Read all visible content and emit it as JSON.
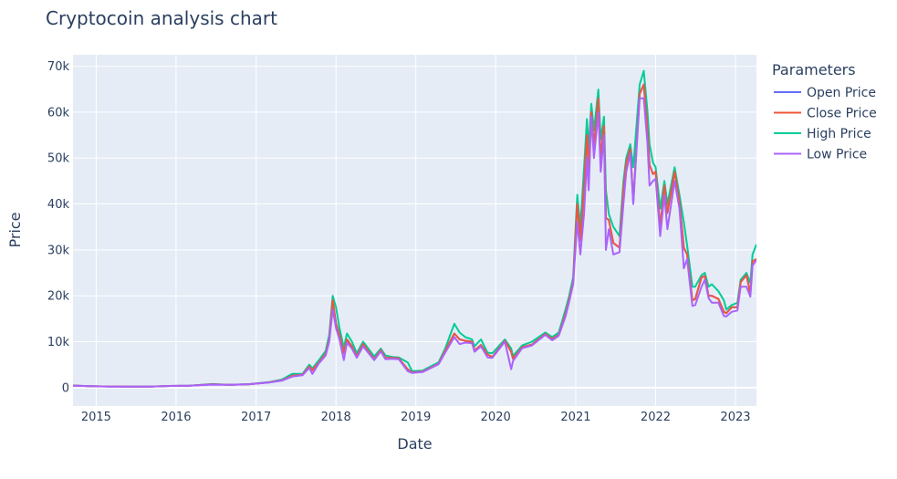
{
  "chart_data": {
    "type": "line",
    "title": "Cryptocoin analysis chart",
    "xlabel": "Date",
    "ylabel": "Price",
    "legend_title": "Parameters",
    "legend_position": "right",
    "grid": true,
    "x_range": [
      "2014-09-17",
      "2023-04-07"
    ],
    "ylim": [
      -4000,
      72500
    ],
    "x_ticks": [
      {
        "label": "2015",
        "date": "2015-01-01"
      },
      {
        "label": "2016",
        "date": "2016-01-01"
      },
      {
        "label": "2017",
        "date": "2017-01-01"
      },
      {
        "label": "2018",
        "date": "2018-01-01"
      },
      {
        "label": "2019",
        "date": "2019-01-01"
      },
      {
        "label": "2020",
        "date": "2020-01-01"
      },
      {
        "label": "2021",
        "date": "2021-01-01"
      },
      {
        "label": "2022",
        "date": "2022-01-01"
      },
      {
        "label": "2023",
        "date": "2023-01-01"
      }
    ],
    "y_ticks": [
      {
        "label": "0",
        "value": 0
      },
      {
        "label": "10k",
        "value": 10000
      },
      {
        "label": "20k",
        "value": 20000
      },
      {
        "label": "30k",
        "value": 30000
      },
      {
        "label": "40k",
        "value": 40000
      },
      {
        "label": "50k",
        "value": 50000
      },
      {
        "label": "60k",
        "value": 60000
      },
      {
        "label": "70k",
        "value": 70000
      }
    ],
    "x": [
      "2014-09-17",
      "2014-12-01",
      "2015-03-01",
      "2015-06-01",
      "2015-09-01",
      "2015-12-01",
      "2016-03-01",
      "2016-06-15",
      "2016-09-01",
      "2016-12-01",
      "2017-03-01",
      "2017-05-01",
      "2017-06-15",
      "2017-08-01",
      "2017-09-01",
      "2017-09-15",
      "2017-10-15",
      "2017-11-15",
      "2017-12-01",
      "2017-12-17",
      "2018-01-01",
      "2018-01-17",
      "2018-02-06",
      "2018-02-20",
      "2018-03-15",
      "2018-04-06",
      "2018-05-05",
      "2018-06-25",
      "2018-07-25",
      "2018-08-15",
      "2018-09-15",
      "2018-10-15",
      "2018-11-25",
      "2018-12-15",
      "2019-02-01",
      "2019-04-15",
      "2019-05-15",
      "2019-06-26",
      "2019-07-20",
      "2019-08-15",
      "2019-09-15",
      "2019-09-26",
      "2019-10-26",
      "2019-11-25",
      "2019-12-17",
      "2020-02-12",
      "2020-03-12",
      "2020-03-20",
      "2020-05-01",
      "2020-06-15",
      "2020-08-15",
      "2020-09-15",
      "2020-10-15",
      "2020-11-15",
      "2020-12-01",
      "2020-12-20",
      "2021-01-08",
      "2021-01-22",
      "2021-02-08",
      "2021-02-21",
      "2021-03-01",
      "2021-03-13",
      "2021-03-25",
      "2021-04-14",
      "2021-04-25",
      "2021-05-10",
      "2021-05-19",
      "2021-06-01",
      "2021-06-22",
      "2021-07-20",
      "2021-08-07",
      "2021-08-20",
      "2021-09-07",
      "2021-09-21",
      "2021-10-20",
      "2021-11-08",
      "2021-11-25",
      "2021-12-04",
      "2021-12-20",
      "2022-01-01",
      "2022-01-22",
      "2022-02-10",
      "2022-02-24",
      "2022-03-29",
      "2022-04-20",
      "2022-05-10",
      "2022-05-25",
      "2022-06-18",
      "2022-07-01",
      "2022-07-30",
      "2022-08-14",
      "2022-08-31",
      "2022-09-15",
      "2022-10-15",
      "2022-11-09",
      "2022-11-20",
      "2022-12-15",
      "2023-01-10",
      "2023-01-25",
      "2023-02-20",
      "2023-03-10",
      "2023-03-20",
      "2023-04-07"
    ],
    "series": [
      {
        "name": "Open Price",
        "color": "#636efa",
        "values": [
          460,
          330,
          250,
          230,
          230,
          370,
          420,
          700,
          610,
          750,
          1150,
          1600,
          2600,
          2800,
          4600,
          3800,
          5500,
          7400,
          10500,
          19000,
          14000,
          11500,
          7500,
          10500,
          9000,
          6800,
          9500,
          6200,
          8200,
          6500,
          6500,
          6400,
          4000,
          3300,
          3500,
          5200,
          8000,
          11800,
          10500,
          10200,
          10000,
          8100,
          9300,
          7200,
          6700,
          10200,
          7800,
          6300,
          8800,
          9400,
          11700,
          10600,
          11500,
          16000,
          19000,
          23000,
          40000,
          32000,
          44000,
          55000,
          47000,
          60000,
          52500,
          63000,
          50000,
          57000,
          37000,
          36500,
          31500,
          30500,
          43000,
          49000,
          52000,
          40500,
          64000,
          66000,
          56000,
          48500,
          46500,
          47000,
          35000,
          44000,
          38000,
          47000,
          40500,
          30500,
          29000,
          19000,
          19300,
          24000,
          24300,
          20000,
          20000,
          19300,
          16500,
          16200,
          17500,
          17500,
          23000,
          24500,
          20500,
          27500,
          28000
        ]
      },
      {
        "name": "Close Price",
        "color": "#ef553b",
        "values": [
          460,
          330,
          250,
          230,
          230,
          370,
          420,
          700,
          610,
          750,
          1150,
          1600,
          2600,
          2800,
          4600,
          3800,
          5500,
          7400,
          10500,
          19000,
          14000,
          11500,
          7500,
          10500,
          9000,
          6800,
          9500,
          6200,
          8200,
          6500,
          6500,
          6400,
          4000,
          3300,
          3500,
          5200,
          8000,
          11800,
          10500,
          10200,
          10000,
          8100,
          9300,
          7200,
          6700,
          10200,
          7800,
          6300,
          8800,
          9400,
          11700,
          10600,
          11500,
          16000,
          19000,
          23000,
          40000,
          32000,
          44000,
          55000,
          47000,
          60000,
          52500,
          63000,
          50000,
          57000,
          37000,
          36500,
          31500,
          30500,
          43000,
          49000,
          52000,
          40500,
          64000,
          66000,
          56000,
          48500,
          46500,
          47000,
          35000,
          44000,
          38000,
          47000,
          40500,
          30500,
          29000,
          19000,
          19300,
          24000,
          24300,
          20000,
          20000,
          19300,
          16500,
          16200,
          17500,
          17500,
          23000,
          24500,
          20500,
          27500,
          28000
        ]
      },
      {
        "name": "High Price",
        "color": "#00cc96",
        "values": [
          470,
          340,
          260,
          240,
          240,
          380,
          440,
          780,
          620,
          770,
          1200,
          1800,
          3000,
          3000,
          5000,
          4200,
          6000,
          8000,
          11500,
          20000,
          17500,
          13000,
          8700,
          11800,
          10000,
          7500,
          10000,
          6800,
          8500,
          7000,
          6700,
          6600,
          5500,
          3600,
          3700,
          5500,
          8500,
          13900,
          12000,
          11000,
          10500,
          9000,
          10500,
          7600,
          7500,
          10500,
          8500,
          6900,
          9200,
          10000,
          12000,
          11000,
          12000,
          17000,
          19800,
          24000,
          42000,
          35000,
          48000,
          58500,
          52000,
          61800,
          56000,
          64900,
          54000,
          59000,
          43000,
          37800,
          35000,
          33000,
          45000,
          50000,
          53000,
          48000,
          66000,
          69000,
          60000,
          53000,
          49000,
          48000,
          39000,
          45000,
          40000,
          48000,
          42000,
          36000,
          31000,
          22000,
          22000,
          24500,
          25000,
          22000,
          22500,
          21000,
          19000,
          17000,
          18000,
          18500,
          23500,
          25000,
          22800,
          29000,
          31200
        ]
      },
      {
        "name": "Low Price",
        "color": "#ab63fa",
        "values": [
          440,
          310,
          240,
          220,
          220,
          360,
          410,
          650,
          600,
          740,
          1100,
          1550,
          2400,
          2700,
          4300,
          3000,
          5300,
          7000,
          10000,
          17000,
          13000,
          10500,
          6000,
          9800,
          8500,
          6500,
          9000,
          6000,
          7900,
          6200,
          6300,
          6200,
          3600,
          3200,
          3400,
          5100,
          7600,
          11000,
          9500,
          9800,
          9700,
          7800,
          9000,
          6600,
          6500,
          10000,
          4000,
          5800,
          8600,
          9200,
          11500,
          10300,
          11300,
          15500,
          18500,
          22500,
          36000,
          29000,
          38000,
          50000,
          43000,
          59000,
          50000,
          60000,
          47000,
          55000,
          30000,
          34500,
          29000,
          29500,
          40000,
          47000,
          51000,
          40000,
          63000,
          63000,
          53000,
          44000,
          45000,
          45500,
          33000,
          42000,
          34500,
          45000,
          39000,
          26000,
          28000,
          17800,
          18000,
          22000,
          23500,
          19500,
          18500,
          18500,
          15600,
          15500,
          16500,
          16800,
          22000,
          22000,
          19800,
          26600,
          27800
        ]
      }
    ]
  }
}
